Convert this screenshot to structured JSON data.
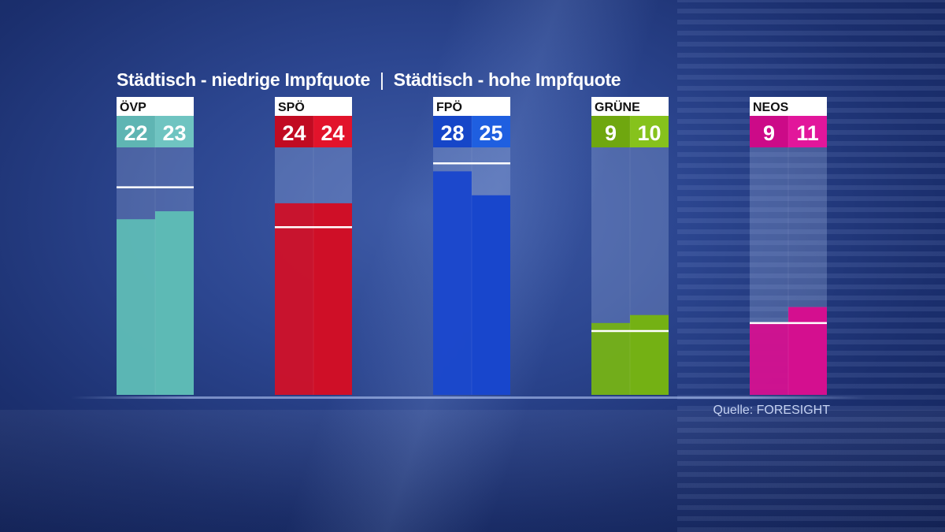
{
  "chart_data": {
    "type": "bar",
    "title_left": "Städtisch - niedrige Impfquote",
    "title_separator": "|",
    "title_right": "Städtisch - hohe Impfquote",
    "source": "Quelle: FORESIGHT",
    "ylim": [
      0,
      31
    ],
    "series": [
      {
        "values": [
          22,
          24,
          28,
          9,
          9
        ]
      },
      {
        "values": [
          23,
          24,
          25,
          10,
          11
        ]
      }
    ],
    "categories": [
      "ÖVP",
      "SPÖ",
      "FPÖ",
      "GRÜNE",
      "NEOS"
    ],
    "reference": [
      26,
      21,
      29,
      8,
      9
    ],
    "colors": [
      {
        "light": "#6fc4c1",
        "dark": "#5fb5b3",
        "bar": "#5dbab5"
      },
      {
        "light": "#e2132b",
        "dark": "#c10b22",
        "bar": "#cf0f27"
      },
      {
        "light": "#1f5fe0",
        "dark": "#1646c8",
        "bar": "#1846cc"
      },
      {
        "light": "#86c21c",
        "dark": "#6fa70f",
        "bar": "#74b114"
      },
      {
        "light": "#e2169b",
        "dark": "#cc0a88",
        "bar": "#d40f8f"
      }
    ]
  }
}
